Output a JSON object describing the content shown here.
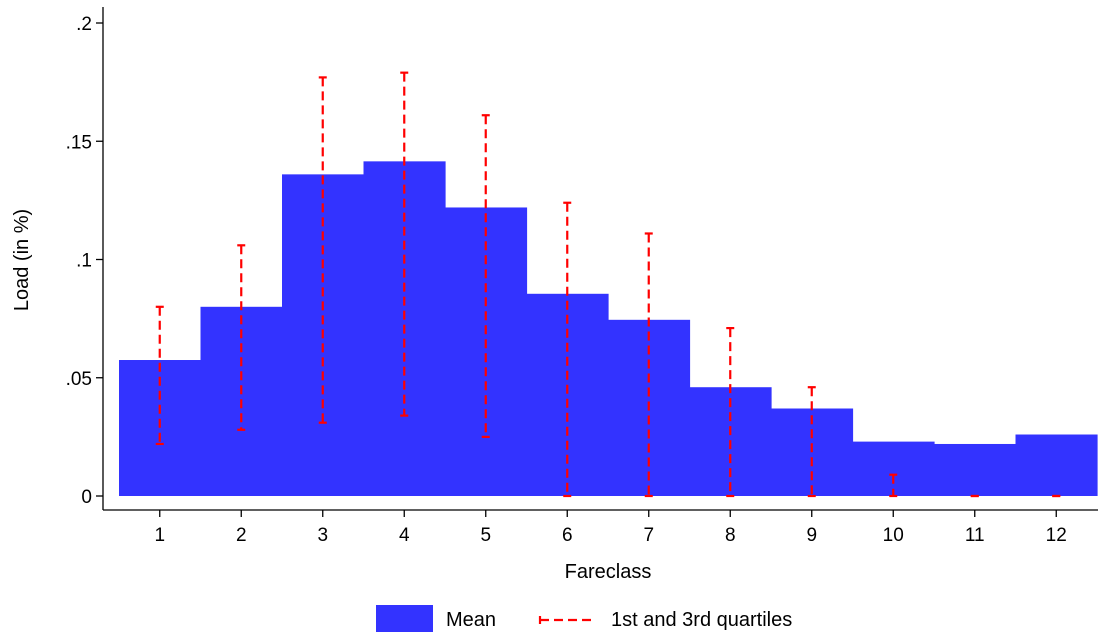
{
  "chart_data": {
    "type": "bar",
    "xlabel": "Fareclass",
    "ylabel": "Load (in %)",
    "categories": [
      "1",
      "2",
      "3",
      "4",
      "5",
      "6",
      "7",
      "8",
      "9",
      "10",
      "11",
      "12"
    ],
    "ylim": [
      0,
      0.2
    ],
    "yticks": [
      {
        "value": 0,
        "label": "0"
      },
      {
        "value": 0.05,
        "label": ".05"
      },
      {
        "value": 0.1,
        "label": ".1"
      },
      {
        "value": 0.15,
        "label": ".15"
      },
      {
        "value": 0.2,
        "label": ".2"
      }
    ],
    "grid": false,
    "legend_position": "bottom",
    "series": [
      {
        "name": "Mean",
        "kind": "bar",
        "color": "#3333ff",
        "values": [
          0.0575,
          0.08,
          0.136,
          0.1415,
          0.122,
          0.0855,
          0.0745,
          0.046,
          0.037,
          0.023,
          0.022,
          0.026
        ]
      },
      {
        "name": "1st and 3rd quartiles",
        "kind": "range",
        "color": "#ff0000",
        "lower": [
          0.022,
          0.028,
          0.031,
          0.034,
          0.025,
          0.0,
          0.0,
          0.0,
          0.0,
          0.0,
          0.0,
          0.0
        ],
        "upper": [
          0.08,
          0.106,
          0.177,
          0.179,
          0.161,
          0.124,
          0.111,
          0.071,
          0.046,
          0.009,
          0.0,
          0.0
        ]
      }
    ]
  }
}
